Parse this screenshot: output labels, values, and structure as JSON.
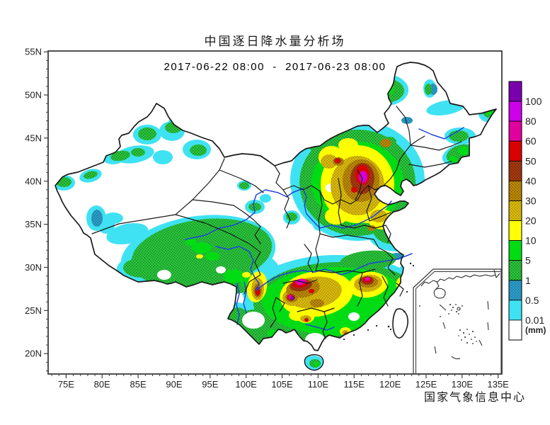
{
  "title": "中国逐日降水量分析场",
  "subtitle": "2017-06-22 08:00  -  2017-06-23 08:00",
  "attribution": "国家气象信息中心",
  "axes": {
    "lat_labels": [
      "55N",
      "50N",
      "45N",
      "40N",
      "35N",
      "30N",
      "25N",
      "20N"
    ],
    "lon_labels": [
      "75E",
      "80E",
      "85E",
      "90E",
      "95E",
      "100E",
      "105E",
      "110E",
      "115E",
      "120E",
      "125E",
      "130E",
      "135E"
    ]
  },
  "colorbar": {
    "unit": "(mm)",
    "levels": [
      "100",
      "80",
      "60",
      "50",
      "40",
      "30",
      "20",
      "10",
      "5",
      "1",
      "0.5",
      "0.01"
    ],
    "segments": [
      {
        "color": "#7A00AE"
      },
      {
        "color": "#CC00E8"
      },
      {
        "color": "#E0009E"
      },
      {
        "color": "#D90000"
      },
      {
        "color": "#A63A10",
        "pattern": "brick"
      },
      {
        "color": "#BD8A06",
        "pattern": "brown"
      },
      {
        "color": "#D9B90E",
        "pattern": "gold"
      },
      {
        "color": "#FFFF00"
      },
      {
        "color": "#00DC14"
      },
      {
        "color": "#2EC53C",
        "pattern": "sgreen"
      },
      {
        "color": "#2D9EC8",
        "pattern": "blue"
      },
      {
        "color": "#3FE2F2"
      },
      {
        "color": "#FFFFFF"
      }
    ]
  },
  "palette_note": {
    "river_color": "#2244DD",
    "boundary_color": "#1a1a1a"
  }
}
